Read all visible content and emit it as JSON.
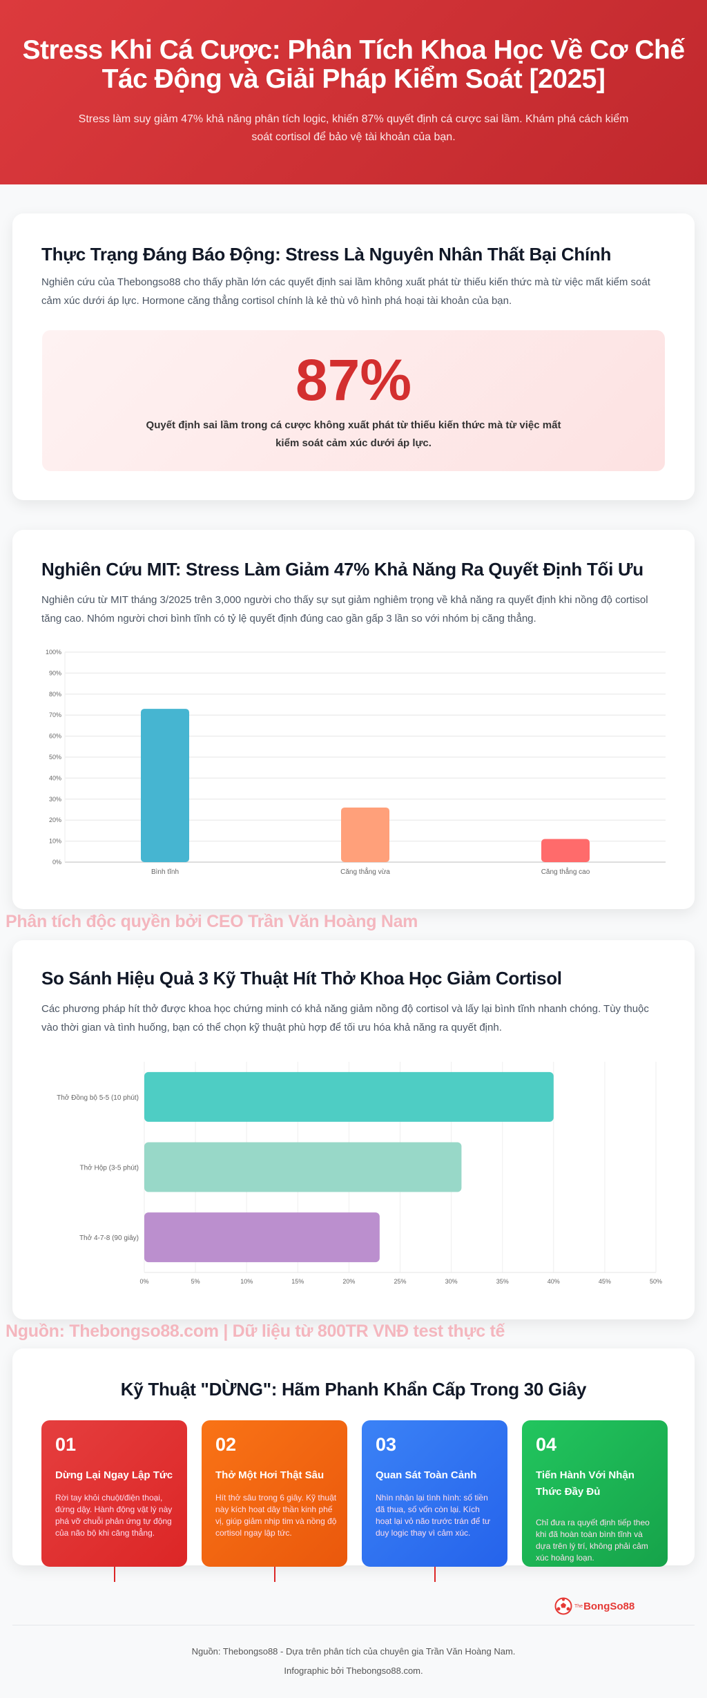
{
  "hero": {
    "title": "Stress Khi Cá Cược: Phân Tích Khoa Học Về Cơ Chế Tác Động và Giải Pháp Kiểm Soát [2025]",
    "subtitle": "Stress làm suy giảm 47% khả năng phân tích logic, khiến 87% quyết định cá cược sai lầm. Khám phá cách kiểm soát cortisol để bảo vệ tài khoản của bạn."
  },
  "section1": {
    "title": "Thực Trạng Đáng Báo Động: Stress Là Nguyên Nhân Thất Bại Chính",
    "text": "Nghiên cứu của Thebongso88 cho thấy phần lớn các quyết định sai lầm không xuất phát từ thiếu kiến thức mà từ việc mất kiểm soát cảm xúc dưới áp lực. Hormone căng thẳng cortisol chính là kẻ thù vô hình phá hoại tài khoản của bạn.",
    "stat": "87%",
    "stat_caption": "Quyết định sai lầm trong cá cược không xuất phát từ thiếu kiến thức mà từ việc mất kiểm soát cảm xúc dưới áp lực."
  },
  "section2": {
    "title": "Nghiên Cứu MIT: Stress Làm Giảm 47% Khả Năng Ra Quyết Định Tối Ưu",
    "text": "Nghiên cứu từ MIT tháng 3/2025 trên 3,000 người cho thấy sự sụt giảm nghiêm trọng về khả năng ra quyết định khi nồng độ cortisol tăng cao. Nhóm người chơi bình tĩnh có tỷ lệ quyết định đúng cao gần gấp 3 lần so với nhóm bị căng thẳng."
  },
  "watermark1": "Phân tích độc quyền bởi CEO Trần Văn Hoàng Nam",
  "section3": {
    "title": "So Sánh Hiệu Quả 3 Kỹ Thuật Hít Thở Khoa Học Giảm Cortisol",
    "text": "Các phương pháp hít thở được khoa học chứng minh có khả năng giảm nồng độ cortisol và lấy lại bình tĩnh nhanh chóng. Tùy thuộc vào thời gian và tình huống, bạn có thể chọn kỹ thuật phù hợp để tối ưu hóa khả năng ra quyết định."
  },
  "watermark2": "Nguồn: Thebongso88.com | Dữ liệu từ 800TR VNĐ test thực tế",
  "chart_data": [
    {
      "type": "bar",
      "orientation": "vertical",
      "categories": [
        "Bình tĩnh",
        "Căng thẳng vừa",
        "Căng thẳng cao"
      ],
      "values": [
        73,
        26,
        11
      ],
      "colors": [
        "#46b5d1",
        "#ffa07a",
        "#ff6b6b"
      ],
      "ylim": [
        0,
        100
      ],
      "yticks": [
        "0%",
        "10%",
        "20%",
        "30%",
        "40%",
        "50%",
        "60%",
        "70%",
        "80%",
        "90%",
        "100%"
      ],
      "grid": true,
      "legend": "none"
    },
    {
      "type": "bar",
      "orientation": "horizontal",
      "categories": [
        "Thở Đồng bộ 5-5 (10 phút)",
        "Thở Hộp (3-5 phút)",
        "Thở 4-7-8 (90 giây)"
      ],
      "values": [
        40,
        31,
        23
      ],
      "colors": [
        "#4ecdc4",
        "#98d8c8",
        "#bb8fce"
      ],
      "xlim": [
        0,
        50
      ],
      "xticks": [
        "0%",
        "5%",
        "10%",
        "15%",
        "20%",
        "25%",
        "30%",
        "35%",
        "40%",
        "45%",
        "50%"
      ],
      "grid": true,
      "legend": "none"
    }
  ],
  "section4": {
    "title": "Kỹ Thuật \"DỪNG\": Hãm Phanh Khẩn Cấp Trong 30 Giây",
    "steps": [
      {
        "num": "01",
        "title": "Dừng Lại Ngay Lập Tức",
        "text": "Rời tay khỏi chuột/điện thoại, đứng dậy. Hành động vật lý này phá vỡ chuỗi phản ứng tự động của não bộ khi căng thẳng.",
        "color": "#e53e3e"
      },
      {
        "num": "02",
        "title": "Thở Một Hơi Thật Sâu",
        "text": "Hít thở sâu trong 6 giây. Kỹ thuật này kích hoạt dây thần kinh phế vị, giúp giảm nhịp tim và nồng độ cortisol ngay lập tức.",
        "color": "#f97316"
      },
      {
        "num": "03",
        "title": "Quan Sát Toàn Cảnh",
        "text": "Nhìn nhận lại tình hình: số tiền đã thua, số vốn còn lại. Kích hoạt lại vỏ não trước trán để tư duy logic thay vì cảm xúc.",
        "color": "#3b82f6"
      },
      {
        "num": "04",
        "title": "Tiến Hành Với Nhận Thức Đầy Đủ",
        "text": "Chỉ đưa ra quyết định tiếp theo khi đã hoàn toàn bình tĩnh và dựa trên lý trí, không phải cảm xúc hoảng loạn.",
        "color": "#22c55e"
      }
    ]
  },
  "logo": {
    "small": "The",
    "main": "BongSo88"
  },
  "footer": {
    "line1": "Nguồn: Thebongso88 - Dựa trên phân tích của chuyên gia Trần Văn Hoàng Nam.",
    "line2": "Infographic bởi Thebongso88.com."
  }
}
